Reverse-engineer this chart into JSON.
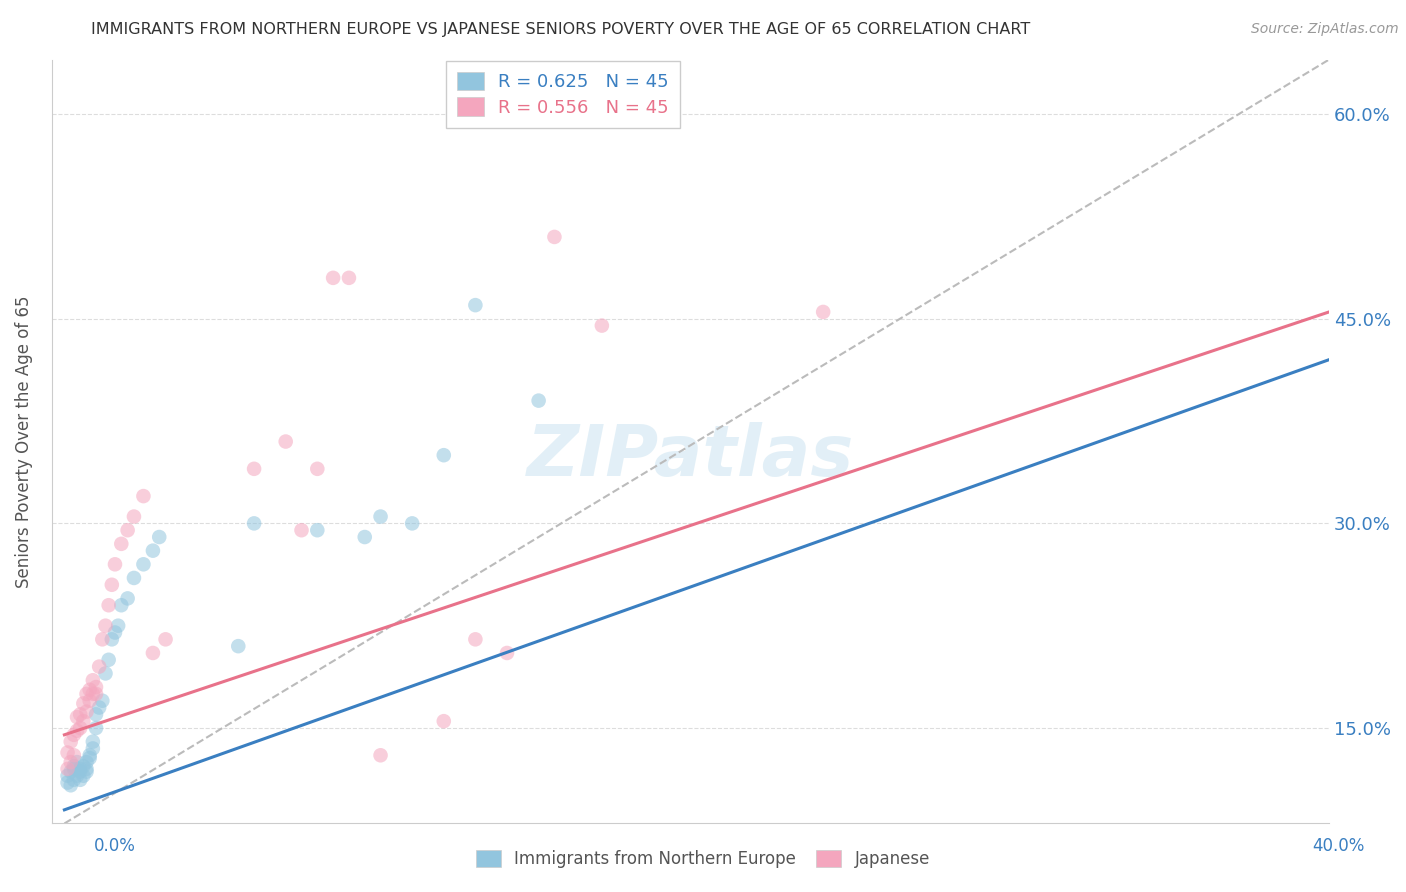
{
  "title": "IMMIGRANTS FROM NORTHERN EUROPE VS JAPANESE SENIORS POVERTY OVER THE AGE OF 65 CORRELATION CHART",
  "source": "Source: ZipAtlas.com",
  "ylabel": "Seniors Poverty Over the Age of 65",
  "r_blue": 0.625,
  "n_blue": 45,
  "r_pink": 0.556,
  "n_pink": 45,
  "blue_color": "#92c5de",
  "pink_color": "#f4a6be",
  "blue_line_color": "#3a7fc1",
  "pink_line_color": "#e8728a",
  "watermark": "ZIPatlas",
  "xlim": [
    0.0,
    0.4
  ],
  "ylim": [
    0.08,
    0.64
  ],
  "ytick_vals": [
    0.15,
    0.3,
    0.45,
    0.6
  ],
  "ytick_labels": [
    "15.0%",
    "30.0%",
    "45.0%",
    "60.0%"
  ],
  "blue_line_x0": 0.0,
  "blue_line_y0": 0.09,
  "blue_line_x1": 0.4,
  "blue_line_y1": 0.42,
  "pink_line_x0": 0.0,
  "pink_line_y0": 0.145,
  "pink_line_x1": 0.4,
  "pink_line_y1": 0.455,
  "dash_line_x0": 0.0,
  "dash_line_y0": 0.08,
  "dash_line_x1": 0.4,
  "dash_line_y1": 0.64,
  "blue_scatter_x": [
    0.001,
    0.001,
    0.002,
    0.002,
    0.003,
    0.003,
    0.003,
    0.004,
    0.004,
    0.005,
    0.005,
    0.005,
    0.006,
    0.006,
    0.007,
    0.007,
    0.007,
    0.008,
    0.008,
    0.009,
    0.009,
    0.01,
    0.01,
    0.011,
    0.012,
    0.013,
    0.014,
    0.015,
    0.016,
    0.017,
    0.018,
    0.02,
    0.022,
    0.025,
    0.028,
    0.03,
    0.055,
    0.06,
    0.08,
    0.095,
    0.1,
    0.11,
    0.12,
    0.13,
    0.15
  ],
  "blue_scatter_y": [
    0.11,
    0.115,
    0.108,
    0.118,
    0.112,
    0.12,
    0.122,
    0.115,
    0.125,
    0.118,
    0.112,
    0.12,
    0.115,
    0.122,
    0.12,
    0.118,
    0.125,
    0.13,
    0.128,
    0.135,
    0.14,
    0.15,
    0.16,
    0.165,
    0.17,
    0.19,
    0.2,
    0.215,
    0.22,
    0.225,
    0.24,
    0.245,
    0.26,
    0.27,
    0.28,
    0.29,
    0.21,
    0.3,
    0.295,
    0.29,
    0.305,
    0.3,
    0.35,
    0.46,
    0.39
  ],
  "pink_scatter_x": [
    0.001,
    0.001,
    0.002,
    0.002,
    0.003,
    0.003,
    0.004,
    0.004,
    0.005,
    0.005,
    0.006,
    0.006,
    0.007,
    0.007,
    0.008,
    0.008,
    0.009,
    0.009,
    0.01,
    0.01,
    0.011,
    0.012,
    0.013,
    0.014,
    0.015,
    0.016,
    0.018,
    0.02,
    0.022,
    0.025,
    0.028,
    0.032,
    0.06,
    0.07,
    0.075,
    0.08,
    0.085,
    0.09,
    0.1,
    0.12,
    0.13,
    0.14,
    0.155,
    0.17,
    0.24
  ],
  "pink_scatter_y": [
    0.12,
    0.132,
    0.125,
    0.14,
    0.13,
    0.145,
    0.148,
    0.158,
    0.15,
    0.16,
    0.155,
    0.168,
    0.162,
    0.175,
    0.17,
    0.178,
    0.175,
    0.185,
    0.18,
    0.175,
    0.195,
    0.215,
    0.225,
    0.24,
    0.255,
    0.27,
    0.285,
    0.295,
    0.305,
    0.32,
    0.205,
    0.215,
    0.34,
    0.36,
    0.295,
    0.34,
    0.48,
    0.48,
    0.13,
    0.155,
    0.215,
    0.205,
    0.51,
    0.445,
    0.455
  ]
}
